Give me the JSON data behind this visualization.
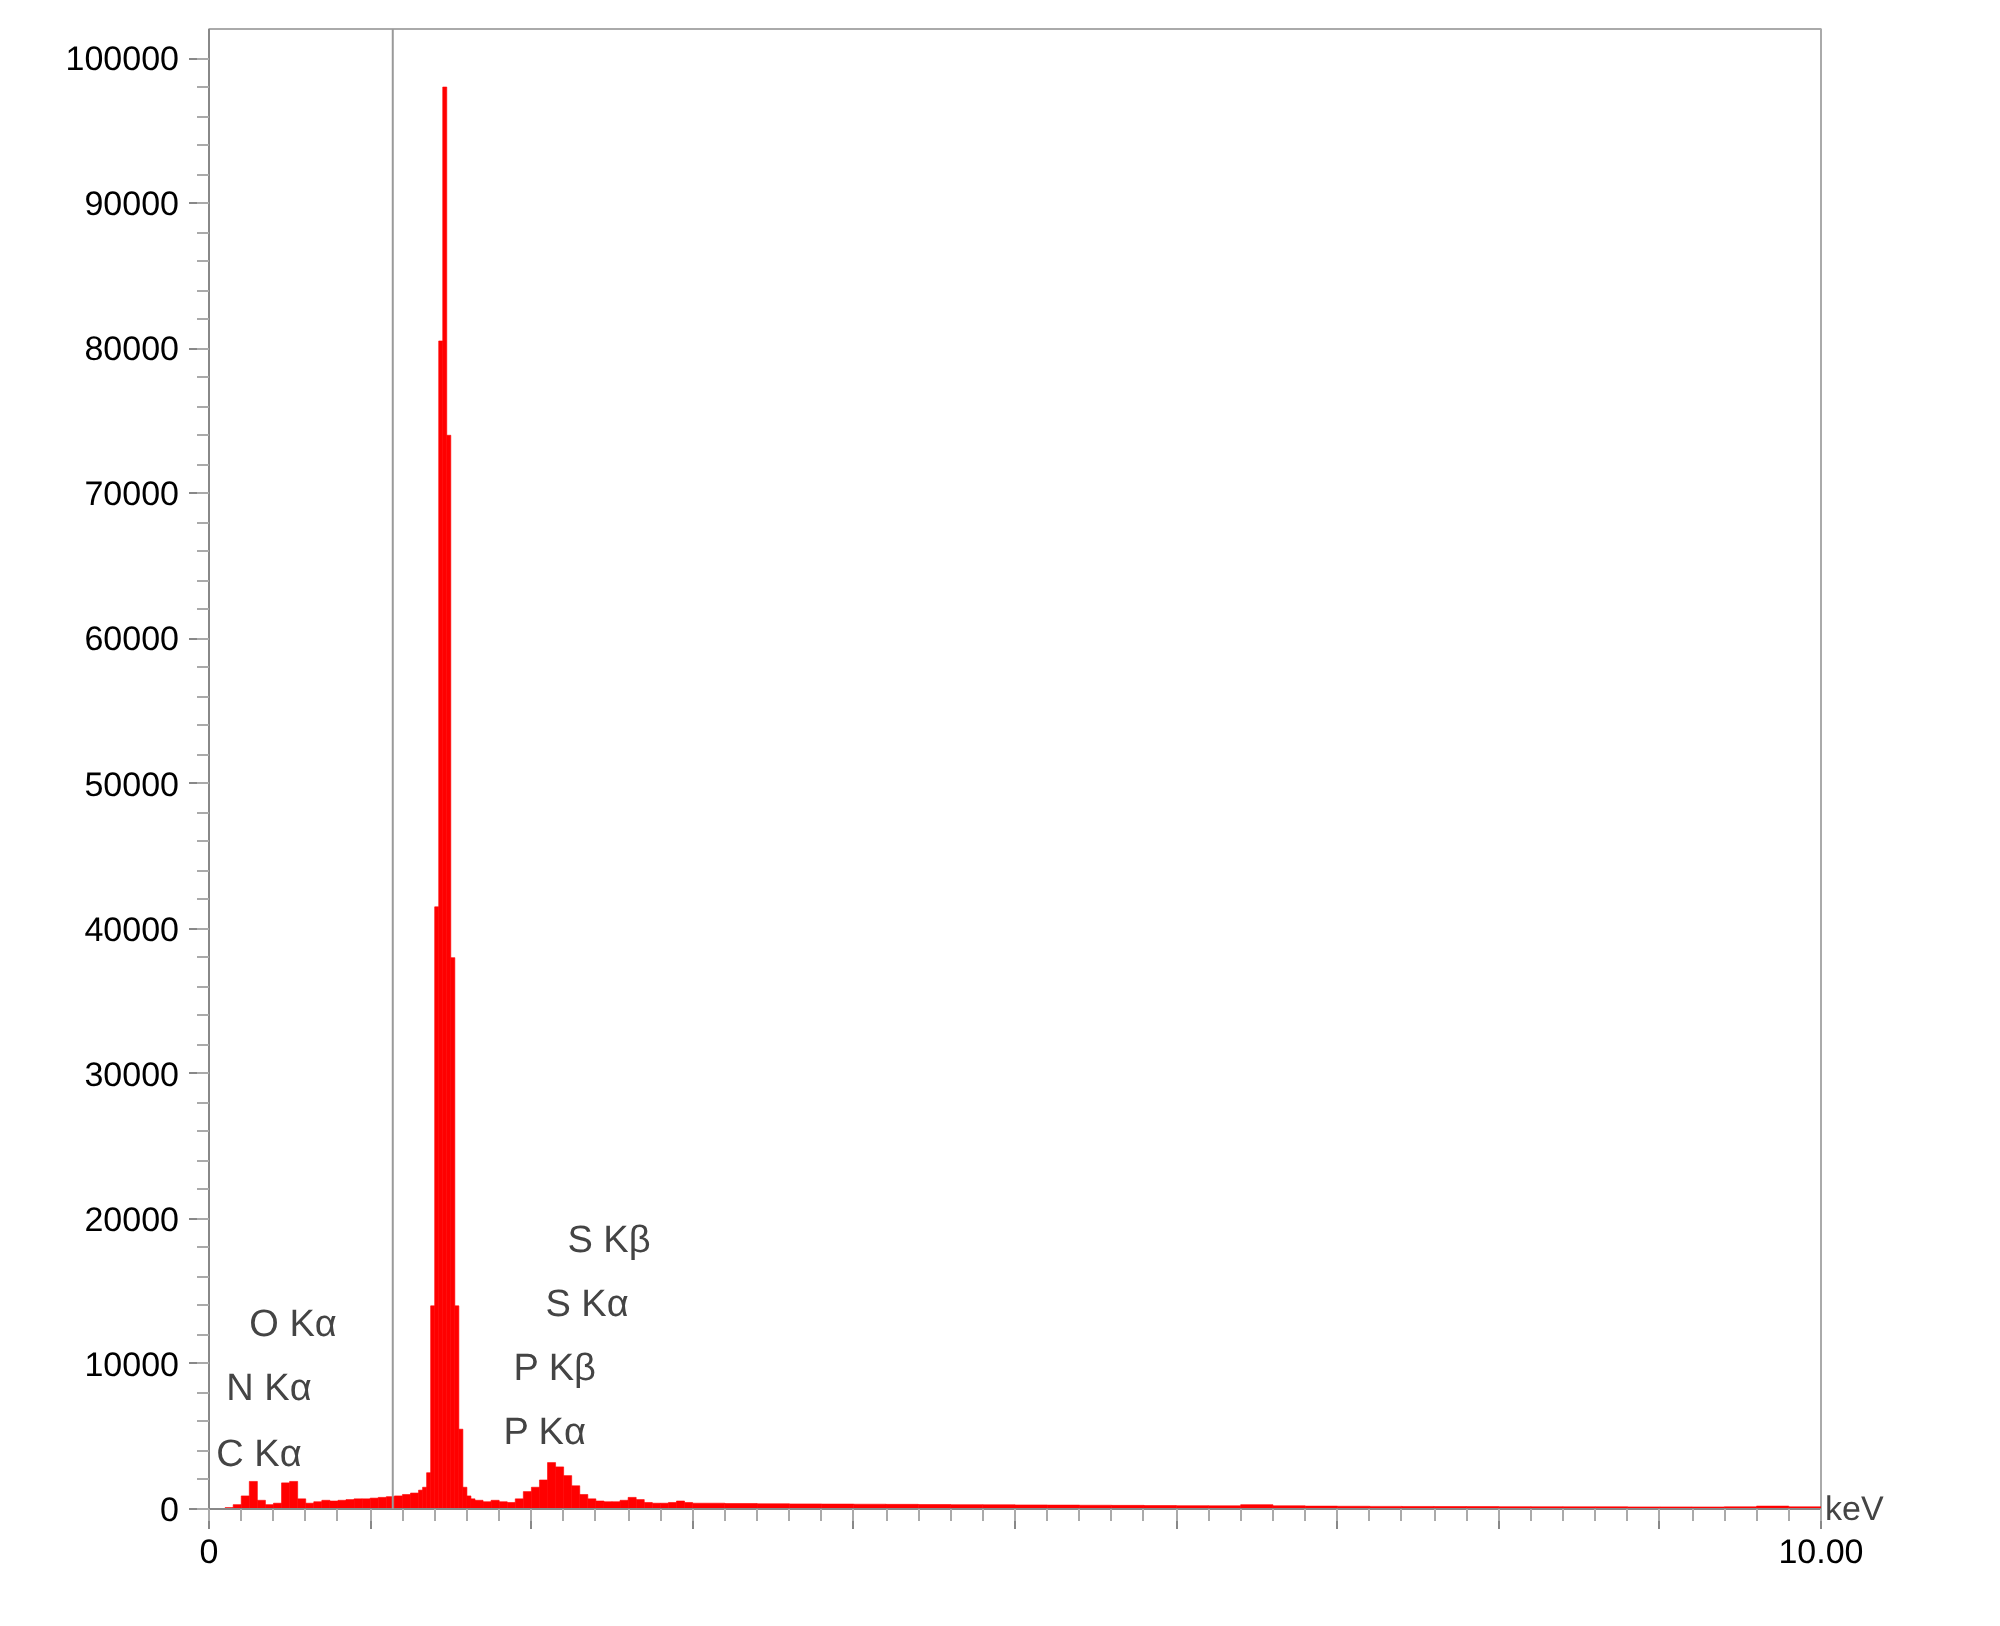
{
  "chart_data": {
    "type": "histogram",
    "xlabel": "keV",
    "bins": [
      0.1,
      0.15,
      0.2,
      0.25,
      0.3,
      0.35,
      0.4,
      0.45,
      0.5,
      0.55,
      0.6,
      0.65,
      0.7,
      0.75,
      0.8,
      0.85,
      0.9,
      0.95,
      1.0,
      1.05,
      1.1,
      1.15,
      1.2,
      1.25,
      1.3,
      1.325,
      1.35,
      1.375,
      1.4,
      1.425,
      1.45,
      1.475,
      1.5,
      1.525,
      1.55,
      1.575,
      1.6,
      1.625,
      1.65,
      1.7,
      1.75,
      1.8,
      1.85,
      1.9,
      1.95,
      2.0,
      2.05,
      2.1,
      2.15,
      2.2,
      2.25,
      2.3,
      2.35,
      2.4,
      2.45,
      2.5,
      2.55,
      2.6,
      2.65,
      2.7,
      2.75,
      2.8,
      2.85,
      2.9,
      2.95,
      3.0,
      3.2,
      3.4,
      3.6,
      3.8,
      4.0,
      4.2,
      4.4,
      4.6,
      4.8,
      5.0,
      5.2,
      5.4,
      5.6,
      5.8,
      6.0,
      6.2,
      6.4,
      6.6,
      6.8,
      7.0,
      7.2,
      7.4,
      7.6,
      7.8,
      8.0,
      8.2,
      8.4,
      8.6,
      8.8,
      9.0,
      9.2,
      9.4,
      9.6,
      9.8,
      10.0
    ],
    "values": [
      100,
      300,
      900,
      1900,
      600,
      300,
      400,
      1800,
      1900,
      700,
      400,
      500,
      600,
      550,
      600,
      650,
      700,
      700,
      750,
      800,
      850,
      900,
      1000,
      1100,
      1300,
      1500,
      2500,
      14000,
      41500,
      80500,
      98000,
      74000,
      38000,
      14000,
      5500,
      1500,
      900,
      700,
      600,
      500,
      600,
      500,
      450,
      700,
      1200,
      1500,
      2000,
      3200,
      2900,
      2300,
      1600,
      1000,
      700,
      550,
      500,
      500,
      600,
      800,
      650,
      450,
      400,
      400,
      450,
      550,
      450,
      400,
      380,
      360,
      350,
      340,
      330,
      320,
      310,
      300,
      290,
      280,
      270,
      260,
      250,
      240,
      230,
      220,
      300,
      220,
      200,
      190,
      180,
      175,
      170,
      165,
      160,
      155,
      150,
      150,
      145,
      145,
      140,
      150,
      200,
      150
    ],
    "color": "#ff0000",
    "xlim": [
      0,
      10
    ],
    "ylim": [
      0,
      102000
    ],
    "xticks": [
      0,
      {
        "value": 1,
        "label": null
      },
      {
        "value": 2,
        "label": null
      },
      {
        "value": 3,
        "label": null
      },
      {
        "value": 4,
        "label": null
      },
      {
        "value": 5,
        "label": null
      },
      {
        "value": 6,
        "label": null
      },
      {
        "value": 7,
        "label": null
      },
      {
        "value": 8,
        "label": null
      },
      {
        "value": 9,
        "label": null
      },
      {
        "value": 10,
        "label": "10.00"
      }
    ],
    "yticks": [
      0,
      10000,
      20000,
      30000,
      40000,
      50000,
      60000,
      70000,
      80000,
      90000,
      100000
    ],
    "ref_lines": [
      {
        "axis": "x",
        "value": 1.14,
        "color": "#999999"
      }
    ],
    "annotations": [
      "C Kα",
      "N Kα",
      "O Kα",
      "P Kα",
      "P Kβ",
      "S Kα",
      "S Kβ"
    ],
    "grid": false
  }
}
